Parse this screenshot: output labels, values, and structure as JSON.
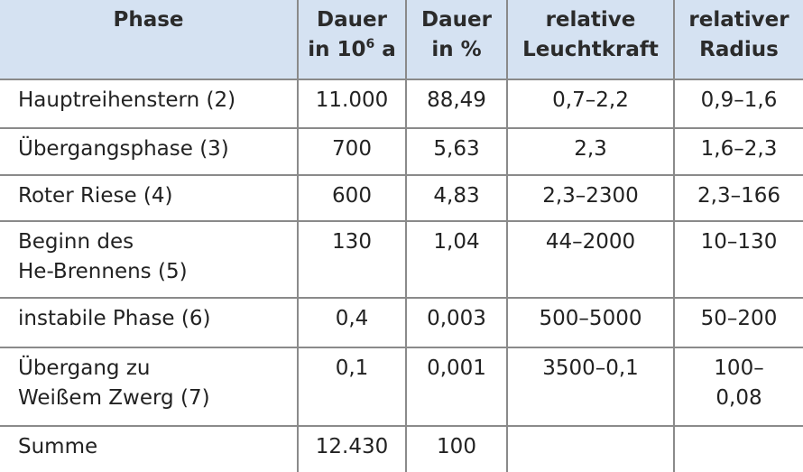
{
  "table": {
    "header": [
      {
        "lines": [
          "Phase"
        ]
      },
      {
        "lines": [
          "Dauer",
          {
            "text": "in 10",
            "sup": "6",
            "after": " a"
          }
        ]
      },
      {
        "lines": [
          "Dauer",
          "in %"
        ]
      },
      {
        "lines": [
          "relative",
          "Leuchtkraft"
        ]
      },
      {
        "lines": [
          "relativer",
          "Radius"
        ]
      }
    ],
    "rows": [
      [
        [
          "Hauptreihenstern (2)"
        ],
        [
          "11.000"
        ],
        [
          "88,49"
        ],
        [
          "0,7–2,2"
        ],
        [
          "0,9–1,6"
        ]
      ],
      [
        [
          "Übergangsphase (3)"
        ],
        [
          "700"
        ],
        [
          "5,63"
        ],
        [
          "2,3"
        ],
        [
          "1,6–2,3"
        ]
      ],
      [
        [
          "Roter Riese (4)"
        ],
        [
          "600"
        ],
        [
          "4,83"
        ],
        [
          "2,3–2300"
        ],
        [
          "2,3–166"
        ]
      ],
      [
        [
          "Beginn des",
          "He-Brennens (5)"
        ],
        [
          "130"
        ],
        [
          "1,04"
        ],
        [
          "44–2000"
        ],
        [
          "10–130"
        ]
      ],
      [
        [
          "instabile Phase (6)"
        ],
        [
          "0,4"
        ],
        [
          "0,003"
        ],
        [
          "500–5000"
        ],
        [
          "50–200"
        ]
      ],
      [
        [
          "Übergang zu",
          "Weißem Zwerg (7)"
        ],
        [
          "0,1"
        ],
        [
          "0,001"
        ],
        [
          "3500–0,1"
        ],
        [
          "100–",
          "0,08"
        ]
      ],
      [
        [
          "Summe"
        ],
        [
          "12.430"
        ],
        [
          "100"
        ],
        [],
        []
      ]
    ]
  }
}
